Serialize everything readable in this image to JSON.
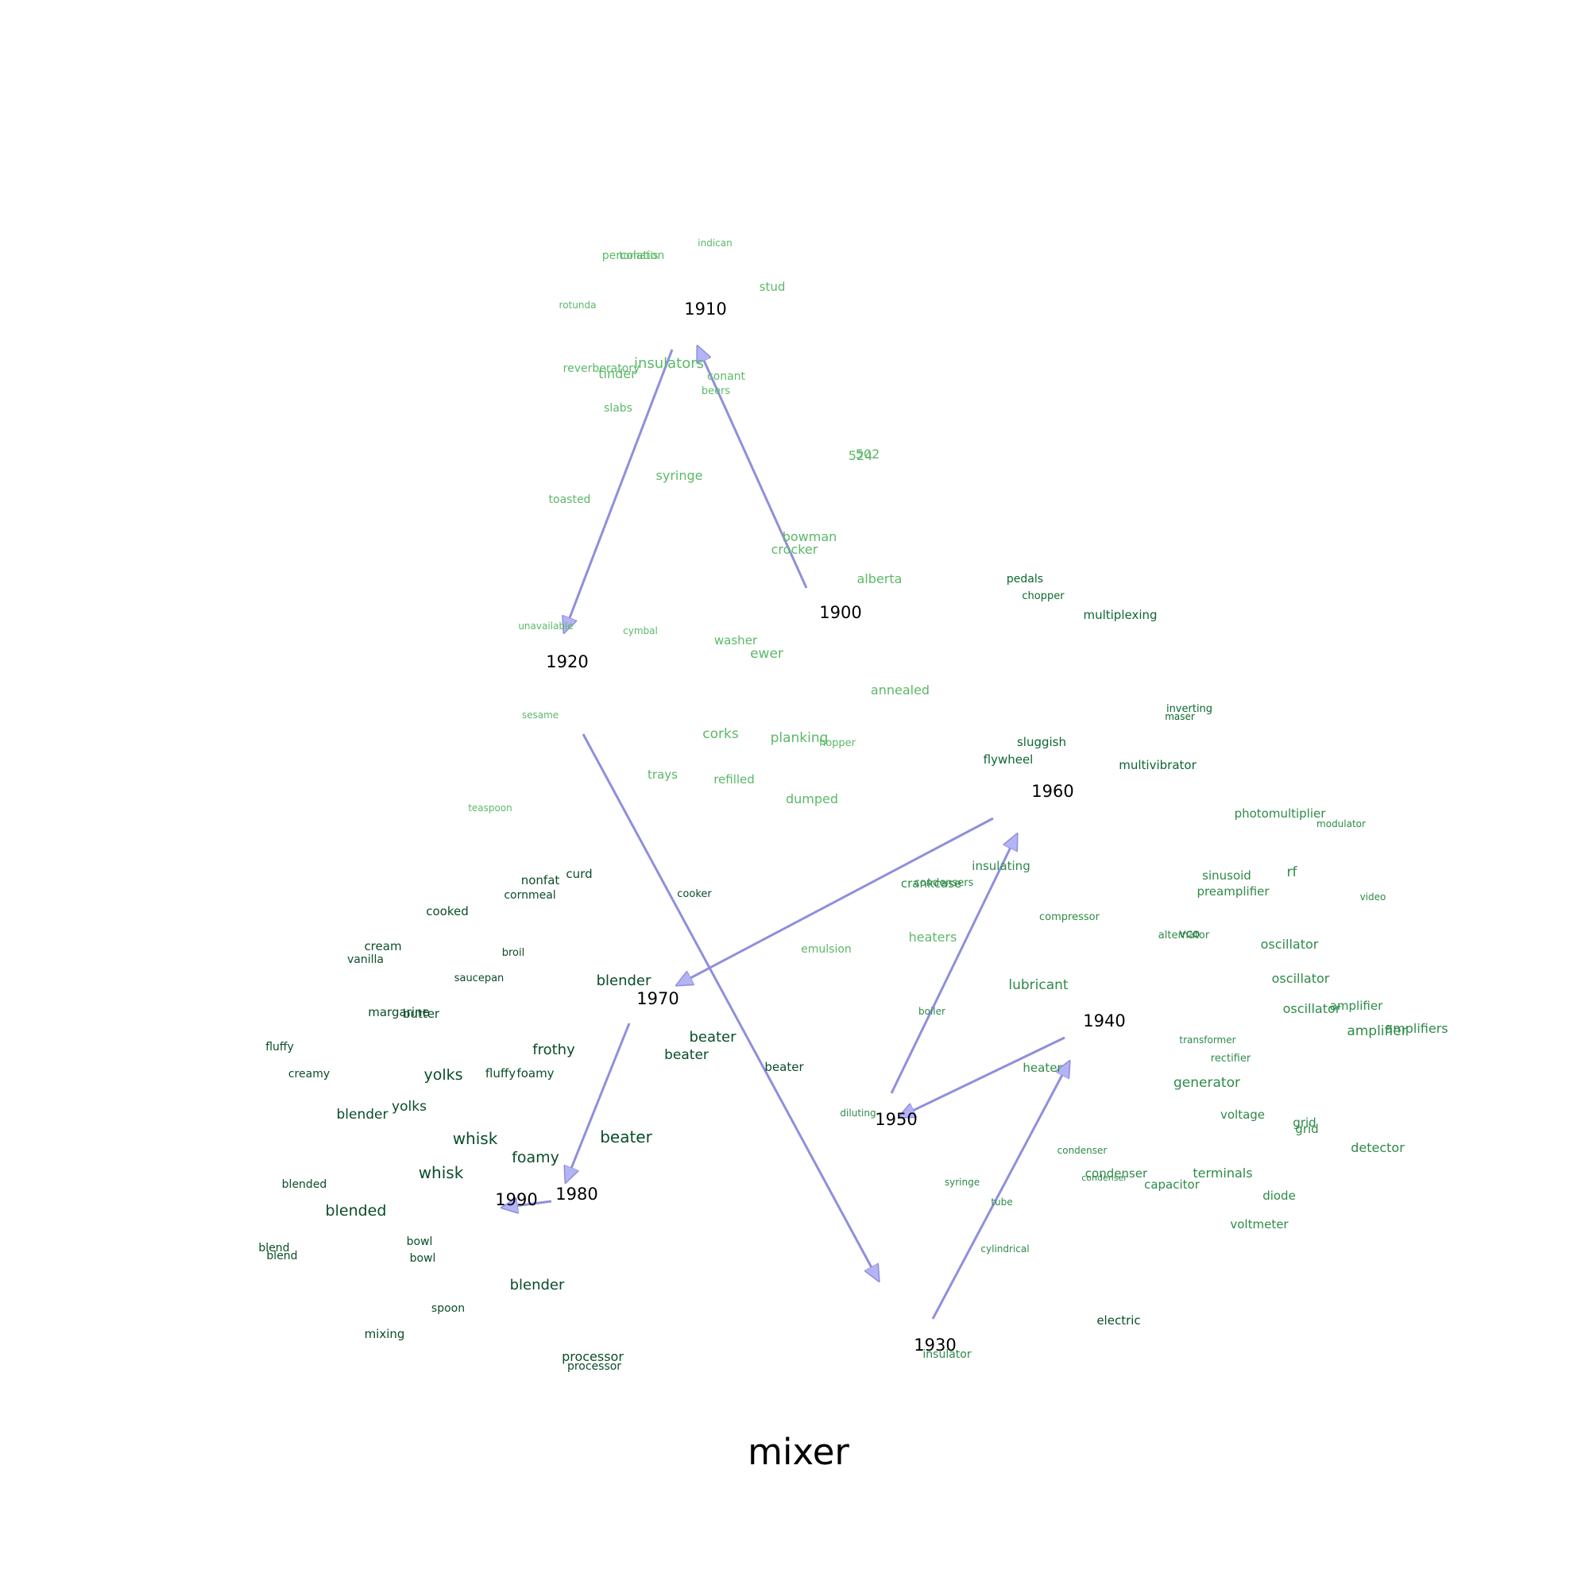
{
  "title": "mixer",
  "colors": {
    "arrow": "#8f8fdc",
    "arrow_head": "#b3b3f5",
    "light": "#5cb868",
    "mid": "#2e8a48",
    "dark": "#0d6630",
    "darkest": "#0a4d28"
  },
  "years": [
    "1900",
    "1910",
    "1920",
    "1930",
    "1940",
    "1950",
    "1960",
    "1970",
    "1980",
    "1990"
  ],
  "trajectory": [
    "1900",
    "1910",
    "1920",
    "1930",
    "1940",
    "1950",
    "1960",
    "1970",
    "1980",
    "1990"
  ],
  "words": [
    [
      "percolation",
      "light"
    ],
    [
      "tomatis",
      "light"
    ],
    [
      "indican",
      "light"
    ],
    [
      "stud",
      "light"
    ],
    [
      "rotunda",
      "light"
    ],
    [
      "reverberatory",
      "light"
    ],
    [
      "insulators",
      "light"
    ],
    [
      "tinder",
      "light"
    ],
    [
      "conant",
      "light"
    ],
    [
      "beers",
      "light"
    ],
    [
      "slabs",
      "light"
    ],
    [
      "524",
      "light"
    ],
    [
      "502",
      "light"
    ],
    [
      "syringe",
      "light"
    ],
    [
      "toasted",
      "light"
    ],
    [
      "bowman",
      "light"
    ],
    [
      "crocker",
      "light"
    ],
    [
      "alberta",
      "light"
    ],
    [
      "unavailable",
      "light"
    ],
    [
      "cymbal",
      "light"
    ],
    [
      "washer",
      "light"
    ],
    [
      "ewer",
      "light"
    ],
    [
      "annealed",
      "light"
    ],
    [
      "sesame",
      "light"
    ],
    [
      "corks",
      "light"
    ],
    [
      "planking",
      "light"
    ],
    [
      "hopper",
      "light"
    ],
    [
      "trays",
      "light"
    ],
    [
      "refilled",
      "light"
    ],
    [
      "dumped",
      "light"
    ],
    [
      "teaspoon",
      "light"
    ],
    [
      "heaters",
      "light"
    ],
    [
      "emulsion",
      "light"
    ],
    [
      "pedals",
      "dark"
    ],
    [
      "chopper",
      "dark"
    ],
    [
      "multiplexing",
      "dark"
    ],
    [
      "inverting",
      "dark"
    ],
    [
      "maser",
      "dark"
    ],
    [
      "sluggish",
      "dark"
    ],
    [
      "flywheel",
      "dark"
    ],
    [
      "multivibrator",
      "dark"
    ],
    [
      "photomultiplier",
      "mid"
    ],
    [
      "modulator",
      "mid"
    ],
    [
      "insulating",
      "mid"
    ],
    [
      "crankcase",
      "mid"
    ],
    [
      "condensers",
      "mid"
    ],
    [
      "sinusoid",
      "mid"
    ],
    [
      "rf",
      "mid"
    ],
    [
      "preamplifier",
      "mid"
    ],
    [
      "video",
      "mid"
    ],
    [
      "compressor",
      "mid"
    ],
    [
      "vco",
      "dark"
    ],
    [
      "alternator",
      "mid"
    ],
    [
      "oscillator",
      "mid"
    ],
    [
      "oscillator",
      "mid"
    ],
    [
      "oscillator",
      "mid"
    ],
    [
      "amplifier",
      "mid"
    ],
    [
      "amplifier",
      "mid"
    ],
    [
      "amplifiers",
      "mid"
    ],
    [
      "lubricant",
      "mid"
    ],
    [
      "boiler",
      "mid"
    ],
    [
      "transformer",
      "mid"
    ],
    [
      "rectifier",
      "mid"
    ],
    [
      "heater",
      "mid"
    ],
    [
      "generator",
      "mid"
    ],
    [
      "diluting",
      "mid"
    ],
    [
      "voltage",
      "mid"
    ],
    [
      "grid",
      "mid"
    ],
    [
      "grid",
      "mid"
    ],
    [
      "detector",
      "mid"
    ],
    [
      "condenser",
      "mid"
    ],
    [
      "condenser",
      "mid"
    ],
    [
      "condenser",
      "mid"
    ],
    [
      "capacitor",
      "mid"
    ],
    [
      "terminals",
      "mid"
    ],
    [
      "syringe",
      "mid"
    ],
    [
      "tube",
      "mid"
    ],
    [
      "diode",
      "mid"
    ],
    [
      "voltmeter",
      "mid"
    ],
    [
      "cylindrical",
      "mid"
    ],
    [
      "electric",
      "darkest"
    ],
    [
      "insulator",
      "mid"
    ],
    [
      "nonfat",
      "darkest"
    ],
    [
      "curd",
      "darkest"
    ],
    [
      "cornmeal",
      "darkest"
    ],
    [
      "cooker",
      "darkest"
    ],
    [
      "cooked",
      "darkest"
    ],
    [
      "cream",
      "darkest"
    ],
    [
      "vanilla",
      "darkest"
    ],
    [
      "broil",
      "darkest"
    ],
    [
      "saucepan",
      "darkest"
    ],
    [
      "blender",
      "darkest"
    ],
    [
      "margarine",
      "darkest"
    ],
    [
      "butter",
      "darkest"
    ],
    [
      "fluffy",
      "darkest"
    ],
    [
      "frothy",
      "darkest"
    ],
    [
      "beater",
      "darkest"
    ],
    [
      "beater",
      "darkest"
    ],
    [
      "beater",
      "darkest"
    ],
    [
      "creamy",
      "darkest"
    ],
    [
      "yolks",
      "darkest"
    ],
    [
      "fluffy",
      "darkest"
    ],
    [
      "foamy",
      "darkest"
    ],
    [
      "blender",
      "darkest"
    ],
    [
      "yolks",
      "darkest"
    ],
    [
      "whisk",
      "darkest"
    ],
    [
      "beater",
      "darkest"
    ],
    [
      "foamy",
      "darkest"
    ],
    [
      "whisk",
      "darkest"
    ],
    [
      "blended",
      "darkest"
    ],
    [
      "blended",
      "darkest"
    ],
    [
      "blend",
      "darkest"
    ],
    [
      "blend",
      "darkest"
    ],
    [
      "bowl",
      "darkest"
    ],
    [
      "bowl",
      "darkest"
    ],
    [
      "blender",
      "darkest"
    ],
    [
      "spoon",
      "darkest"
    ],
    [
      "mixing",
      "darkest"
    ],
    [
      "processor",
      "darkest"
    ],
    [
      "processor",
      "darkest"
    ]
  ]
}
